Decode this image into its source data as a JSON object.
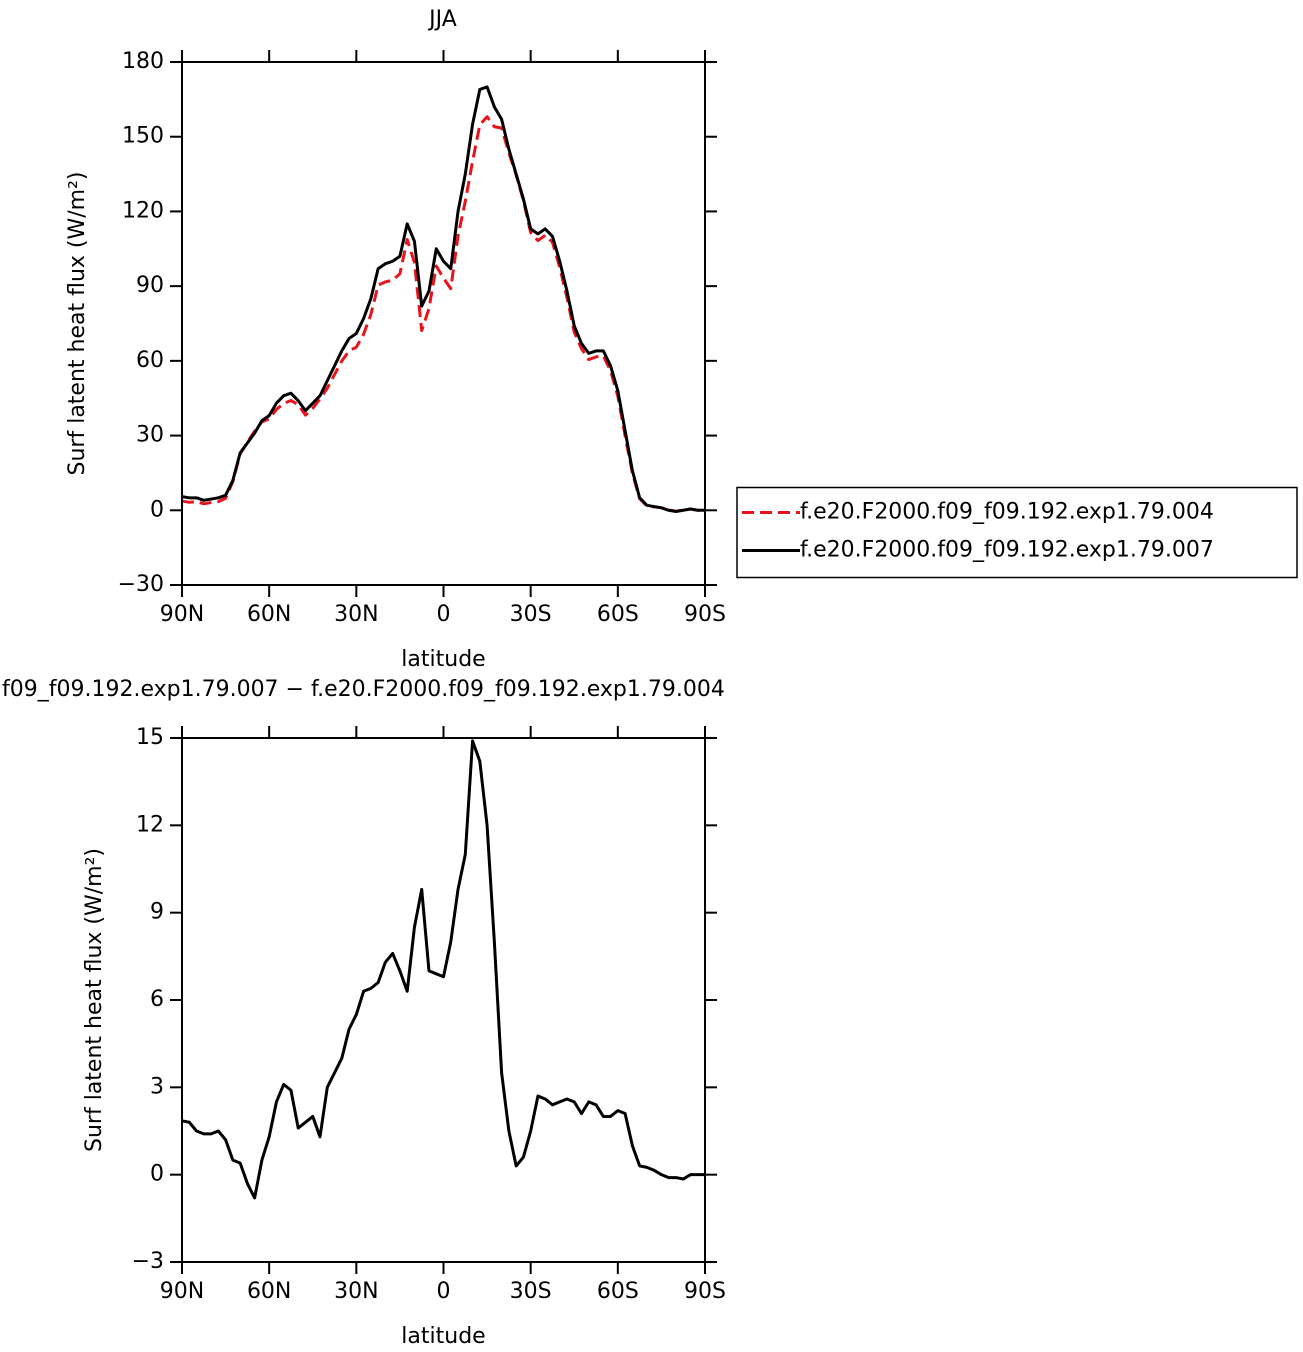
{
  "chart_data": [
    {
      "type": "line",
      "title": "JJA",
      "x_label": "latitude",
      "y_label": "Surf latent heat flux (W/m²)",
      "x": [
        90,
        87.5,
        85,
        82.5,
        80,
        77.5,
        75,
        72.5,
        70,
        67.5,
        65,
        62.5,
        60,
        57.5,
        55,
        52.5,
        50,
        47.5,
        45,
        42.5,
        40,
        37.5,
        35,
        32.5,
        30,
        27.5,
        25,
        22.5,
        20,
        17.5,
        15,
        12.5,
        10,
        7.5,
        5,
        2.5,
        0,
        -2.5,
        -5,
        -7.5,
        -10,
        -12.5,
        -15,
        -17.5,
        -20,
        -22.5,
        -25,
        -27.5,
        -30,
        -32.5,
        -35,
        -37.5,
        -40,
        -42.5,
        -45,
        -47.5,
        -50,
        -52.5,
        -55,
        -57.5,
        -60,
        -62.5,
        -65,
        -67.5,
        -70,
        -72.5,
        -75,
        -77.5,
        -80,
        -82.5,
        -85,
        -87.5,
        -90
      ],
      "series": [
        {
          "name": "f.e20.F2000.f09_f09.192.exp1.79.004",
          "color": "#e8141c",
          "dashed": true,
          "values": [
            3.7,
            3.2,
            3.5,
            2.6,
            3.1,
            3.5,
            4.8,
            11.5,
            22.6,
            27.3,
            31.8,
            35.5,
            36.7,
            40.5,
            42.9,
            44.1,
            42.4,
            38.2,
            41,
            44.7,
            49,
            54.5,
            60,
            64,
            65.5,
            70.7,
            78.6,
            90.4,
            91.7,
            92.4,
            95,
            108.7,
            99.5,
            72.2,
            81,
            98.1,
            93.2,
            89,
            110.2,
            124,
            140.1,
            154.8,
            158,
            154,
            153.5,
            143.5,
            134.7,
            124.4,
            111.5,
            108.3,
            110.4,
            107.6,
            97.5,
            85.4,
            71.5,
            64.9,
            60.5,
            61.6,
            62,
            56,
            45.8,
            29.9,
            15,
            4.7,
            1.75,
            1.35,
            1,
            0.1,
            -0.4,
            0.15,
            0.5,
            0,
            0
          ]
        },
        {
          "name": "f.e20.F2000.f09_f09.192.exp1.79.007",
          "color": "#000000",
          "dashed": false,
          "values": [
            5.5,
            5,
            5,
            4,
            4.5,
            5,
            6,
            12,
            23,
            27,
            31,
            36,
            38,
            43,
            46,
            47,
            44,
            40,
            43,
            46,
            52,
            58,
            64,
            69,
            71,
            77,
            85,
            97,
            99,
            100,
            102,
            115,
            108,
            82,
            88,
            105,
            100,
            97,
            120,
            135,
            155,
            169,
            170,
            162,
            157,
            145,
            135,
            125,
            113,
            111,
            113,
            110,
            100,
            88,
            74,
            67,
            63,
            64,
            64,
            58,
            48,
            32,
            16,
            5,
            2,
            1.5,
            1,
            0,
            -0.5,
            0,
            0.5,
            0,
            0
          ]
        }
      ],
      "xlim": [
        90,
        -90
      ],
      "xticks": [
        {
          "value": 90,
          "label": "90N"
        },
        {
          "value": 60,
          "label": "60N"
        },
        {
          "value": 30,
          "label": "30N"
        },
        0,
        {
          "value": -30,
          "label": "30S"
        },
        {
          "value": -60,
          "label": "60S"
        },
        {
          "value": -90,
          "label": "90S"
        }
      ],
      "ylim": [
        -30,
        180
      ],
      "yticks": [
        {
          "value": -30,
          "label": "−30"
        },
        0,
        30,
        60,
        90,
        120,
        150,
        180
      ],
      "legend": "right"
    },
    {
      "type": "line",
      "title": "f09_f09.192.exp1.79.007 − f.e20.F2000.f09_f09.192.exp1.79.004",
      "x_label": "latitude",
      "y_label": "Surf latent heat flux (W/m²)",
      "x": [
        90,
        87.5,
        85,
        82.5,
        80,
        77.5,
        75,
        72.5,
        70,
        67.5,
        65,
        62.5,
        60,
        57.5,
        55,
        52.5,
        50,
        47.5,
        45,
        42.5,
        40,
        37.5,
        35,
        32.5,
        30,
        27.5,
        25,
        22.5,
        20,
        17.5,
        15,
        12.5,
        10,
        7.5,
        5,
        2.5,
        0,
        -2.5,
        -5,
        -7.5,
        -10,
        -12.5,
        -15,
        -17.5,
        -20,
        -22.5,
        -25,
        -27.5,
        -30,
        -32.5,
        -35,
        -37.5,
        -40,
        -42.5,
        -45,
        -47.5,
        -50,
        -52.5,
        -55,
        -57.5,
        -60,
        -62.5,
        -65,
        -67.5,
        -70,
        -72.5,
        -75,
        -77.5,
        -80,
        -82.5,
        -85,
        -87.5,
        -90
      ],
      "series": [
        {
          "color": "#000000",
          "dashed": false,
          "values": [
            1.85,
            1.8,
            1.5,
            1.4,
            1.4,
            1.5,
            1.2,
            0.5,
            0.4,
            -0.3,
            -0.8,
            0.5,
            1.3,
            2.5,
            3.1,
            2.9,
            1.6,
            1.8,
            2.0,
            1.3,
            3.0,
            3.5,
            4.0,
            5.0,
            5.5,
            6.3,
            6.4,
            6.6,
            7.3,
            7.6,
            7.0,
            6.3,
            8.5,
            9.8,
            7.0,
            6.9,
            6.8,
            8.0,
            9.8,
            11.0,
            14.9,
            14.2,
            12.0,
            8.0,
            3.5,
            1.5,
            0.3,
            0.6,
            1.5,
            2.7,
            2.6,
            2.4,
            2.5,
            2.6,
            2.5,
            2.1,
            2.5,
            2.4,
            2.0,
            2.0,
            2.2,
            2.1,
            1.0,
            0.3,
            0.25,
            0.15,
            0.0,
            -0.1,
            -0.1,
            -0.15,
            0.0,
            0.0,
            0.0
          ]
        }
      ],
      "xlim": [
        90,
        -90
      ],
      "xticks": [
        {
          "value": 90,
          "label": "90N"
        },
        {
          "value": 60,
          "label": "60N"
        },
        {
          "value": 30,
          "label": "30N"
        },
        0,
        {
          "value": -30,
          "label": "30S"
        },
        {
          "value": -60,
          "label": "60S"
        },
        {
          "value": -90,
          "label": "90S"
        }
      ],
      "ylim": [
        -3,
        15
      ],
      "yticks": [
        {
          "value": -3,
          "label": "−3"
        },
        0,
        3,
        6,
        9,
        12,
        15
      ]
    }
  ]
}
